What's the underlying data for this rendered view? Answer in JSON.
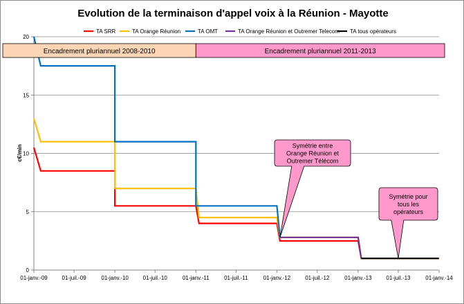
{
  "chart_data": {
    "type": "line",
    "title": "Evolution de la terminaison d'appel voix à la Réunion - Mayotte",
    "ylabel": "c€/min",
    "ylim": [
      0,
      20
    ],
    "yticks": [
      0,
      5,
      10,
      15,
      20
    ],
    "xlim": [
      "2009-01-01",
      "2014-01-01"
    ],
    "xticks": [
      {
        "date": "2009-01-01",
        "label": "01-janv.-09"
      },
      {
        "date": "2009-07-01",
        "label": "01-juil.-09"
      },
      {
        "date": "2010-01-01",
        "label": "01-janv.-10"
      },
      {
        "date": "2010-07-01",
        "label": "01-juil.-10"
      },
      {
        "date": "2011-01-01",
        "label": "01-janv.-11"
      },
      {
        "date": "2011-07-01",
        "label": "01-juil.-11"
      },
      {
        "date": "2012-01-01",
        "label": "01-janv.-12"
      },
      {
        "date": "2012-07-01",
        "label": "01-juil.-12"
      },
      {
        "date": "2013-01-01",
        "label": "01-janv.-13"
      },
      {
        "date": "2013-07-01",
        "label": "01-juil.-13"
      },
      {
        "date": "2014-01-01",
        "label": "01-janv.-14"
      }
    ],
    "grid": "horizontal",
    "legend": "top",
    "series": [
      {
        "name": "TA SRR",
        "color": "#ff0000",
        "points": [
          [
            "2009-01-01",
            10.5
          ],
          [
            "2009-02-01",
            8.5
          ],
          [
            "2010-01-01",
            8.5
          ],
          [
            "2010-01-01",
            5.5
          ],
          [
            "2011-01-01",
            5.5
          ],
          [
            "2011-01-15",
            4.0
          ],
          [
            "2012-01-01",
            4.0
          ],
          [
            "2012-01-15",
            2.5
          ],
          [
            "2013-01-01",
            2.5
          ],
          [
            "2013-01-15",
            1.0
          ],
          [
            "2013-12-31",
            1.0
          ]
        ]
      },
      {
        "name": "TA Orange Réunion",
        "color": "#ffc000",
        "points": [
          [
            "2009-01-01",
            13.0
          ],
          [
            "2009-02-01",
            11.0
          ],
          [
            "2010-01-01",
            11.0
          ],
          [
            "2010-01-01",
            7.0
          ],
          [
            "2011-01-01",
            7.0
          ],
          [
            "2011-01-15",
            4.5
          ],
          [
            "2012-01-01",
            4.5
          ],
          [
            "2012-01-15",
            2.8
          ],
          [
            "2013-01-01",
            2.8
          ],
          [
            "2013-01-15",
            1.0
          ],
          [
            "2013-12-31",
            1.0
          ]
        ]
      },
      {
        "name": "TA OMT",
        "color": "#0070c0",
        "points": [
          [
            "2009-01-01",
            20.0
          ],
          [
            "2009-02-01",
            17.5
          ],
          [
            "2010-01-01",
            17.5
          ],
          [
            "2010-01-01",
            11.0
          ],
          [
            "2011-01-01",
            11.0
          ],
          [
            "2011-01-01",
            5.5
          ],
          [
            "2012-01-01",
            5.5
          ],
          [
            "2012-01-15",
            2.8
          ]
        ]
      },
      {
        "name": "TA Orange Réunion et Outremer Telecom",
        "color": "#7030a0",
        "points": [
          [
            "2012-01-15",
            2.8
          ],
          [
            "2013-01-01",
            2.8
          ],
          [
            "2013-01-15",
            1.0
          ]
        ]
      },
      {
        "name": "TA tous opérateurs",
        "color": "#000000",
        "points": [
          [
            "2013-01-15",
            1.0
          ],
          [
            "2013-12-31",
            1.0
          ]
        ]
      }
    ],
    "bands": [
      {
        "label": "Encadrement pluriannuel  2008-2010",
        "start": "2009-01-01",
        "end": "2011-01-01",
        "color": "#fcd5b5"
      },
      {
        "label": "Encadrement pluriannuel  2011-2013",
        "start": "2011-01-01",
        "end": "2014-01-01",
        "color": "#ff99cc"
      }
    ],
    "annotations": [
      {
        "lines": [
          "Symétrie entre",
          "Orange Réunion et",
          "Outremer Télécom"
        ],
        "pointer": {
          "date": "2012-01-15",
          "value": 2.8
        },
        "color": "#ff99cc"
      },
      {
        "lines": [
          "Symétrie pour",
          "tous les",
          "opérateurs"
        ],
        "pointer": {
          "date": "2013-07-01",
          "value": 1.0
        },
        "color": "#ff99cc"
      }
    ]
  }
}
